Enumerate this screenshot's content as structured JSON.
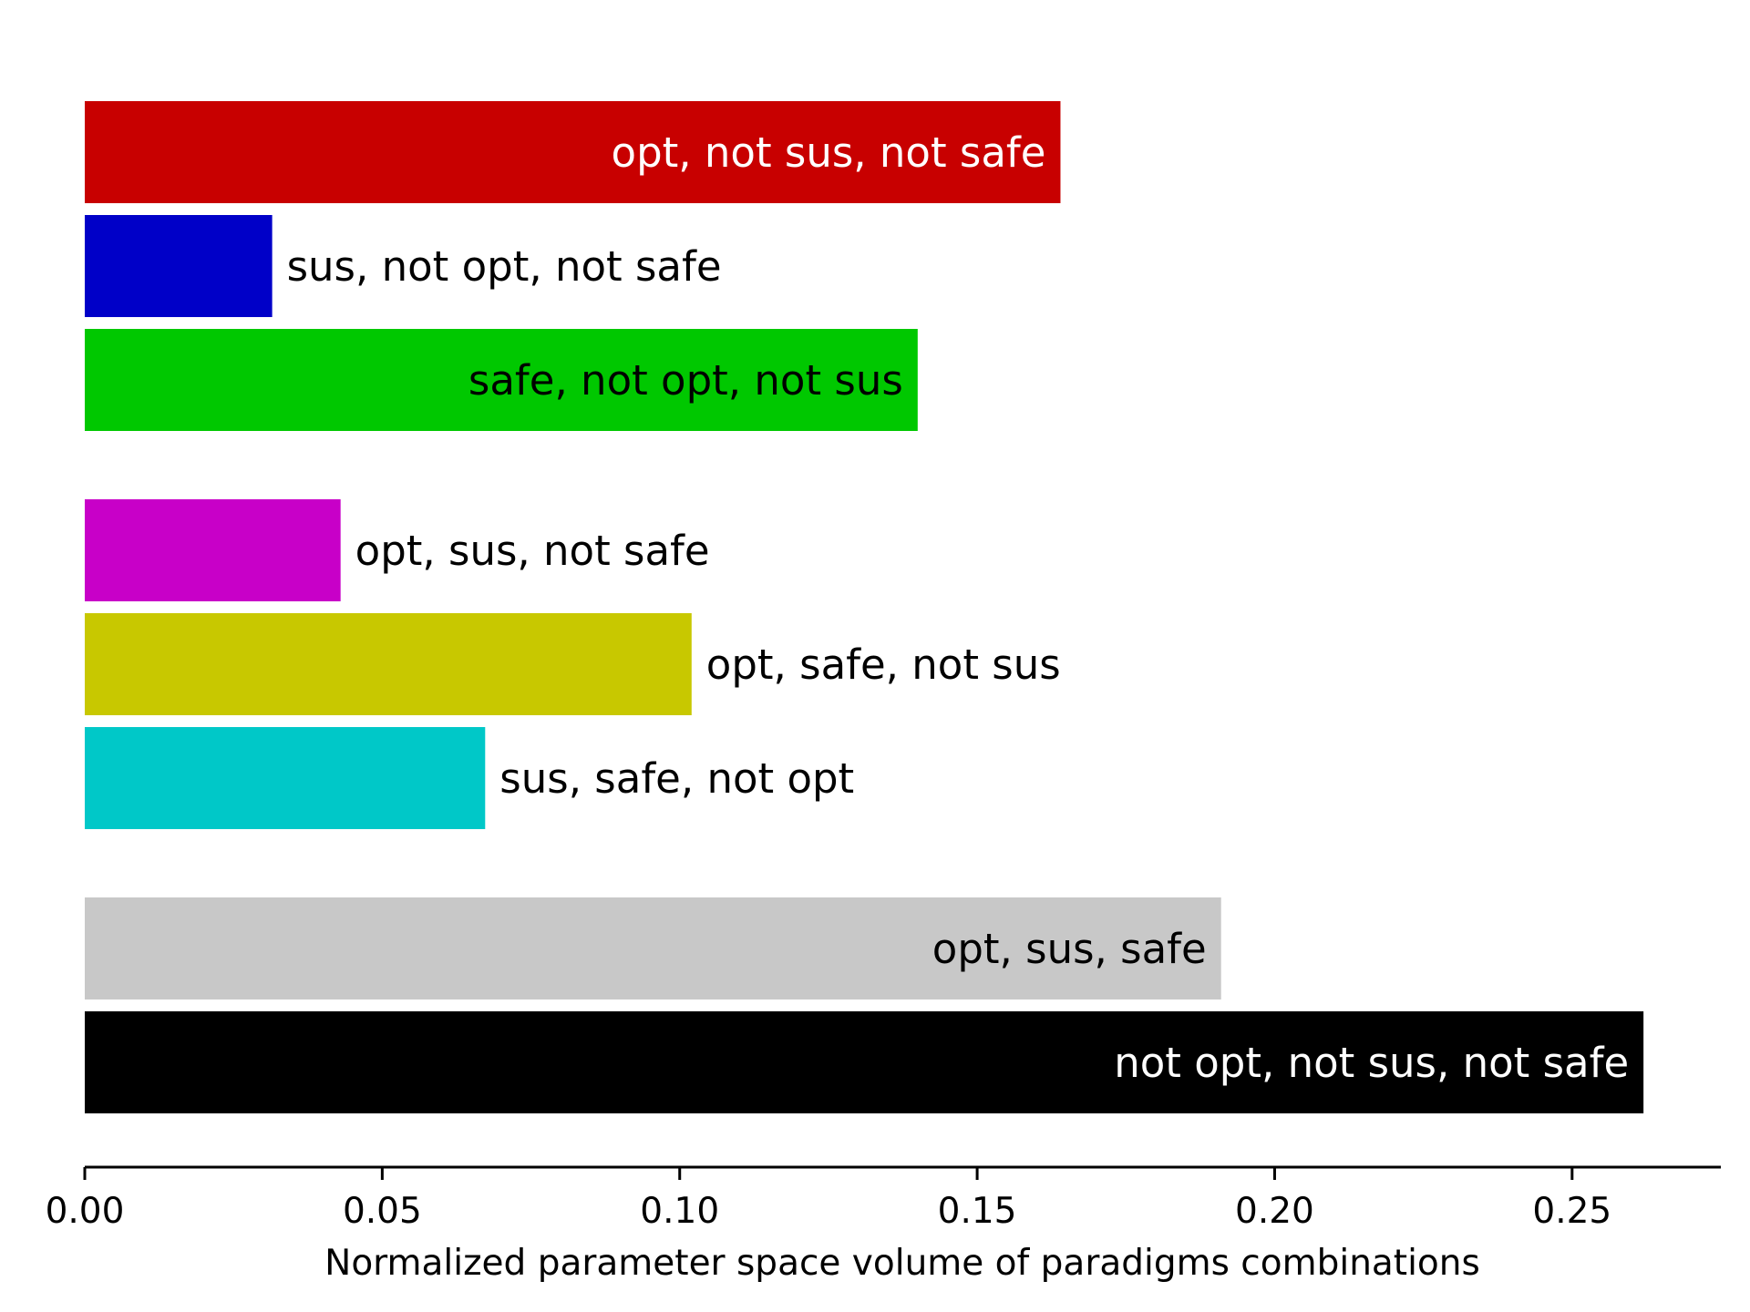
{
  "chart_data": {
    "type": "bar",
    "orientation": "horizontal",
    "xlabel": "Normalized parameter space volume of paradigms combinations",
    "xlim": [
      0,
      0.275
    ],
    "xticks": [
      "0.00",
      "0.05",
      "0.10",
      "0.15",
      "0.20",
      "0.25"
    ],
    "grid": false,
    "bars": [
      {
        "label": "opt, not sus, not safe",
        "value": 0.164,
        "color": "#c80000",
        "label_color": "#ffffff",
        "label_inside": true
      },
      {
        "label": "sus, not opt, not safe",
        "value": 0.0315,
        "color": "#0000c8",
        "label_color": "#000000",
        "label_inside": false
      },
      {
        "label": "safe, not opt, not sus",
        "value": 0.14,
        "color": "#00c800",
        "label_color": "#000000",
        "label_inside": true
      },
      {
        "label": "opt, sus, not safe",
        "value": 0.043,
        "color": "#c800c8",
        "label_color": "#000000",
        "label_inside": false
      },
      {
        "label": "opt, safe, not sus",
        "value": 0.102,
        "color": "#c8c800",
        "label_color": "#000000",
        "label_inside": false
      },
      {
        "label": "sus, safe, not opt",
        "value": 0.0673,
        "color": "#00c8c8",
        "label_color": "#000000",
        "label_inside": false
      },
      {
        "label": "opt, sus, safe",
        "value": 0.191,
        "color": "#c8c8c8",
        "label_color": "#000000",
        "label_inside": true
      },
      {
        "label": "not opt, not sus, not safe",
        "value": 0.262,
        "color": "#000000",
        "label_color": "#ffffff",
        "label_inside": true
      }
    ]
  }
}
